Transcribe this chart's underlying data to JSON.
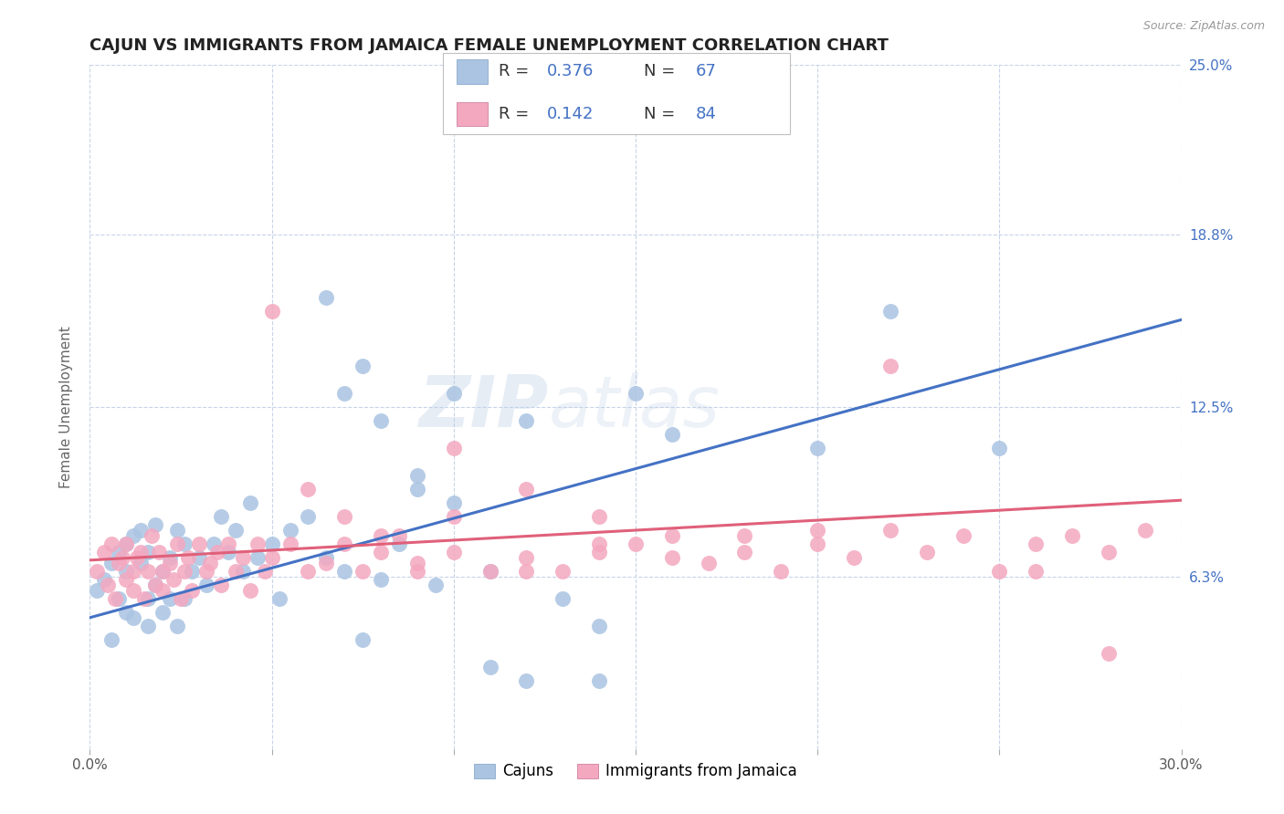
{
  "title": "CAJUN VS IMMIGRANTS FROM JAMAICA FEMALE UNEMPLOYMENT CORRELATION CHART",
  "source": "Source: ZipAtlas.com",
  "ylabel_label": "Female Unemployment",
  "xlim": [
    0.0,
    0.3
  ],
  "ylim": [
    0.0,
    0.25
  ],
  "ytick_vals": [
    0.063,
    0.125,
    0.188,
    0.25
  ],
  "ytick_labels_right": [
    "6.3%",
    "12.5%",
    "18.8%",
    "25.0%"
  ],
  "cajun_R": "0.376",
  "cajun_N": "67",
  "jamaica_R": "0.142",
  "jamaica_N": "84",
  "cajun_color": "#aac4e2",
  "cajun_line_color": "#4472c4",
  "jamaica_color": "#f4a8c0",
  "jamaica_line_color": "#e0607a",
  "legend_label_cajun": "Cajuns",
  "legend_label_jamaica": "Immigrants from Jamaica",
  "watermark": "ZIPAtlas",
  "background_color": "#ffffff",
  "grid_color": "#c8d4e8",
  "title_color": "#222222",
  "tick_label_color_right": "#4472c4",
  "cajun_x": [
    0.002,
    0.004,
    0.006,
    0.006,
    0.008,
    0.008,
    0.01,
    0.01,
    0.01,
    0.012,
    0.012,
    0.014,
    0.014,
    0.016,
    0.016,
    0.016,
    0.018,
    0.018,
    0.02,
    0.02,
    0.022,
    0.022,
    0.024,
    0.024,
    0.026,
    0.026,
    0.028,
    0.03,
    0.032,
    0.034,
    0.036,
    0.038,
    0.04,
    0.042,
    0.044,
    0.046,
    0.05,
    0.052,
    0.055,
    0.06,
    0.065,
    0.07,
    0.075,
    0.08,
    0.085,
    0.09,
    0.095,
    0.1,
    0.11,
    0.12,
    0.13,
    0.14,
    0.15,
    0.16,
    0.18,
    0.2,
    0.22,
    0.25,
    0.065,
    0.07,
    0.075,
    0.08,
    0.09,
    0.1,
    0.11,
    0.12,
    0.14
  ],
  "cajun_y": [
    0.058,
    0.062,
    0.068,
    0.04,
    0.072,
    0.055,
    0.075,
    0.05,
    0.065,
    0.078,
    0.048,
    0.068,
    0.08,
    0.055,
    0.072,
    0.045,
    0.06,
    0.082,
    0.065,
    0.05,
    0.055,
    0.07,
    0.08,
    0.045,
    0.075,
    0.055,
    0.065,
    0.07,
    0.06,
    0.075,
    0.085,
    0.072,
    0.08,
    0.065,
    0.09,
    0.07,
    0.075,
    0.055,
    0.08,
    0.085,
    0.07,
    0.065,
    0.04,
    0.062,
    0.075,
    0.095,
    0.06,
    0.09,
    0.065,
    0.12,
    0.055,
    0.045,
    0.13,
    0.115,
    0.235,
    0.11,
    0.16,
    0.11,
    0.165,
    0.13,
    0.14,
    0.12,
    0.1,
    0.13,
    0.03,
    0.025,
    0.025
  ],
  "jamaica_x": [
    0.002,
    0.004,
    0.005,
    0.006,
    0.007,
    0.008,
    0.009,
    0.01,
    0.01,
    0.012,
    0.012,
    0.013,
    0.014,
    0.015,
    0.016,
    0.017,
    0.018,
    0.019,
    0.02,
    0.02,
    0.022,
    0.023,
    0.024,
    0.025,
    0.026,
    0.027,
    0.028,
    0.03,
    0.032,
    0.033,
    0.035,
    0.036,
    0.038,
    0.04,
    0.042,
    0.044,
    0.046,
    0.048,
    0.05,
    0.055,
    0.06,
    0.065,
    0.07,
    0.075,
    0.08,
    0.085,
    0.09,
    0.1,
    0.11,
    0.12,
    0.13,
    0.14,
    0.15,
    0.16,
    0.17,
    0.18,
    0.19,
    0.2,
    0.21,
    0.22,
    0.23,
    0.24,
    0.25,
    0.26,
    0.27,
    0.28,
    0.29,
    0.1,
    0.12,
    0.14,
    0.16,
    0.18,
    0.2,
    0.05,
    0.06,
    0.07,
    0.08,
    0.09,
    0.1,
    0.12,
    0.14,
    0.28,
    0.26,
    0.22
  ],
  "jamaica_y": [
    0.065,
    0.072,
    0.06,
    0.075,
    0.055,
    0.068,
    0.07,
    0.062,
    0.075,
    0.065,
    0.058,
    0.07,
    0.072,
    0.055,
    0.065,
    0.078,
    0.06,
    0.072,
    0.065,
    0.058,
    0.068,
    0.062,
    0.075,
    0.055,
    0.065,
    0.07,
    0.058,
    0.075,
    0.065,
    0.068,
    0.072,
    0.06,
    0.075,
    0.065,
    0.07,
    0.058,
    0.075,
    0.065,
    0.07,
    0.075,
    0.065,
    0.068,
    0.075,
    0.065,
    0.072,
    0.078,
    0.068,
    0.072,
    0.065,
    0.07,
    0.065,
    0.072,
    0.075,
    0.07,
    0.068,
    0.078,
    0.065,
    0.075,
    0.07,
    0.08,
    0.072,
    0.078,
    0.065,
    0.075,
    0.078,
    0.072,
    0.08,
    0.11,
    0.095,
    0.085,
    0.078,
    0.072,
    0.08,
    0.16,
    0.095,
    0.085,
    0.078,
    0.065,
    0.085,
    0.065,
    0.075,
    0.035,
    0.065,
    0.14
  ]
}
